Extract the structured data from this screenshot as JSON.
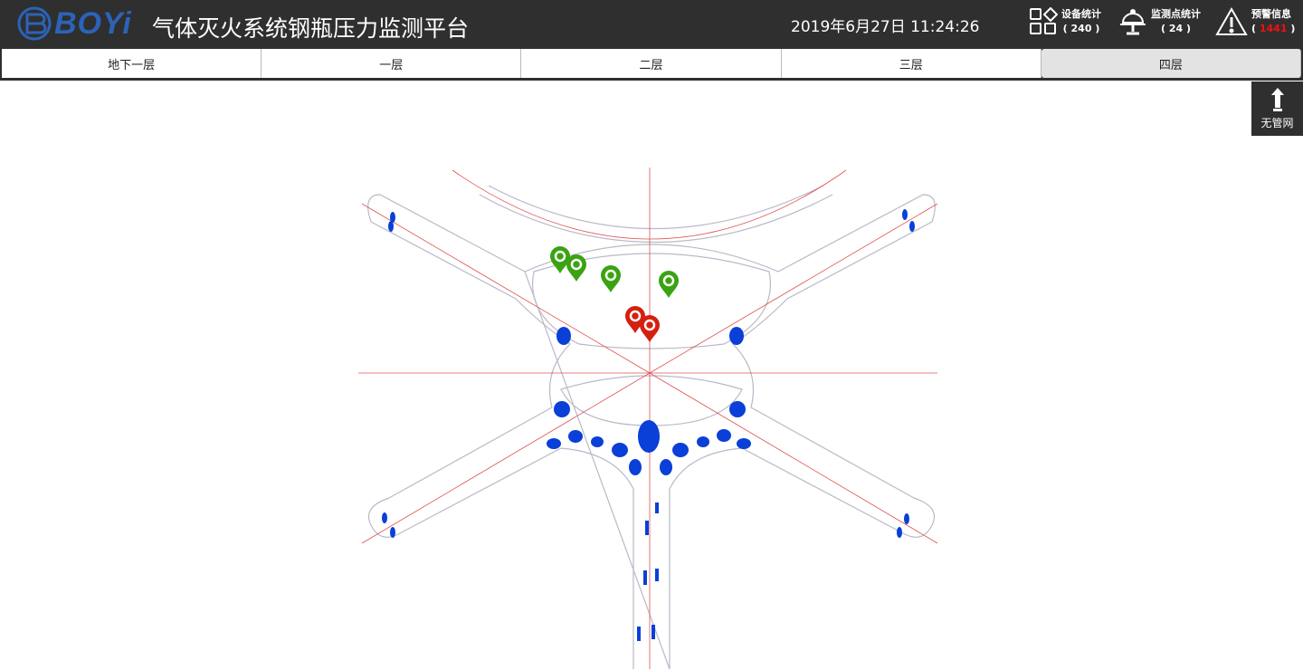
{
  "header": {
    "logo_text": "BOYi",
    "title": "气体灭火系统钢瓶压力监测平台",
    "datetime": "2019年6月27日 11:24:26",
    "stats": [
      {
        "icon": "grid-icon",
        "label": "设备统计",
        "count": "240"
      },
      {
        "icon": "monitor-dome-icon",
        "label": "监测点统计",
        "count": "24"
      },
      {
        "icon": "warning-icon",
        "label": "预警信息",
        "count": "1441",
        "count_color": "#f01010"
      }
    ]
  },
  "floors": {
    "items": [
      {
        "label": "地下一层"
      },
      {
        "label": "一层"
      },
      {
        "label": "二层"
      },
      {
        "label": "三层"
      },
      {
        "label": "四层"
      }
    ],
    "active": "四层"
  },
  "side_button": {
    "icon": "hydrant-icon",
    "label": "无管网"
  },
  "map": {
    "markers": [
      {
        "status": "normal",
        "color": "#3aa312"
      },
      {
        "status": "normal",
        "color": "#3aa312"
      },
      {
        "status": "normal",
        "color": "#3aa312"
      },
      {
        "status": "normal",
        "color": "#3aa312"
      },
      {
        "status": "alarm",
        "color": "#d4200f"
      },
      {
        "status": "alarm",
        "color": "#d4200f"
      }
    ]
  }
}
